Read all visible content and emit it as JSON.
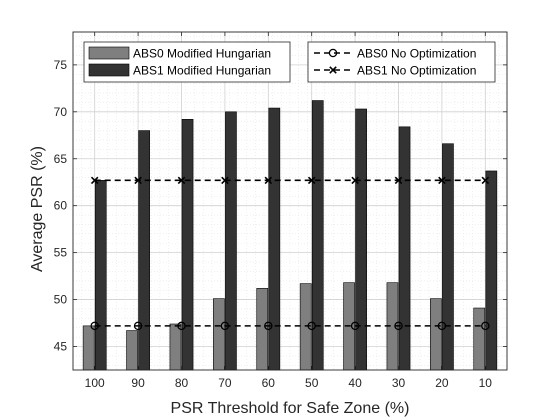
{
  "chart_data": {
    "type": "bar",
    "title": "",
    "xlabel": "PSR Threshold for Safe Zone (%)",
    "ylabel": "Average PSR (%)",
    "categories": [
      "100",
      "90",
      "80",
      "70",
      "60",
      "50",
      "40",
      "30",
      "20",
      "10"
    ],
    "ylim": [
      42.5,
      78.5
    ],
    "yticks": [
      45,
      50,
      55,
      60,
      65,
      70,
      75
    ],
    "grid": true,
    "legend_placement": "top",
    "series": [
      {
        "name": "ABS0 Modified Hungarian",
        "kind": "bar",
        "color": "#7f7f7f",
        "values": [
          47.2,
          46.7,
          47.4,
          50.1,
          51.2,
          51.7,
          51.8,
          51.8,
          50.1,
          49.1
        ]
      },
      {
        "name": "ABS1 Modified Hungarian",
        "kind": "bar",
        "color": "#333333",
        "values": [
          62.7,
          68.0,
          69.2,
          70.0,
          70.4,
          71.2,
          70.3,
          68.4,
          66.6,
          63.7
        ]
      },
      {
        "name": "ABS0 No Optimization",
        "kind": "line",
        "marker": "circle",
        "color": "#000000",
        "values": [
          47.2,
          47.2,
          47.2,
          47.2,
          47.2,
          47.2,
          47.2,
          47.2,
          47.2,
          47.2
        ]
      },
      {
        "name": "ABS1 No Optimization",
        "kind": "line",
        "marker": "x",
        "color": "#000000",
        "values": [
          62.7,
          62.7,
          62.7,
          62.7,
          62.7,
          62.7,
          62.7,
          62.7,
          62.7,
          62.7
        ]
      }
    ]
  }
}
